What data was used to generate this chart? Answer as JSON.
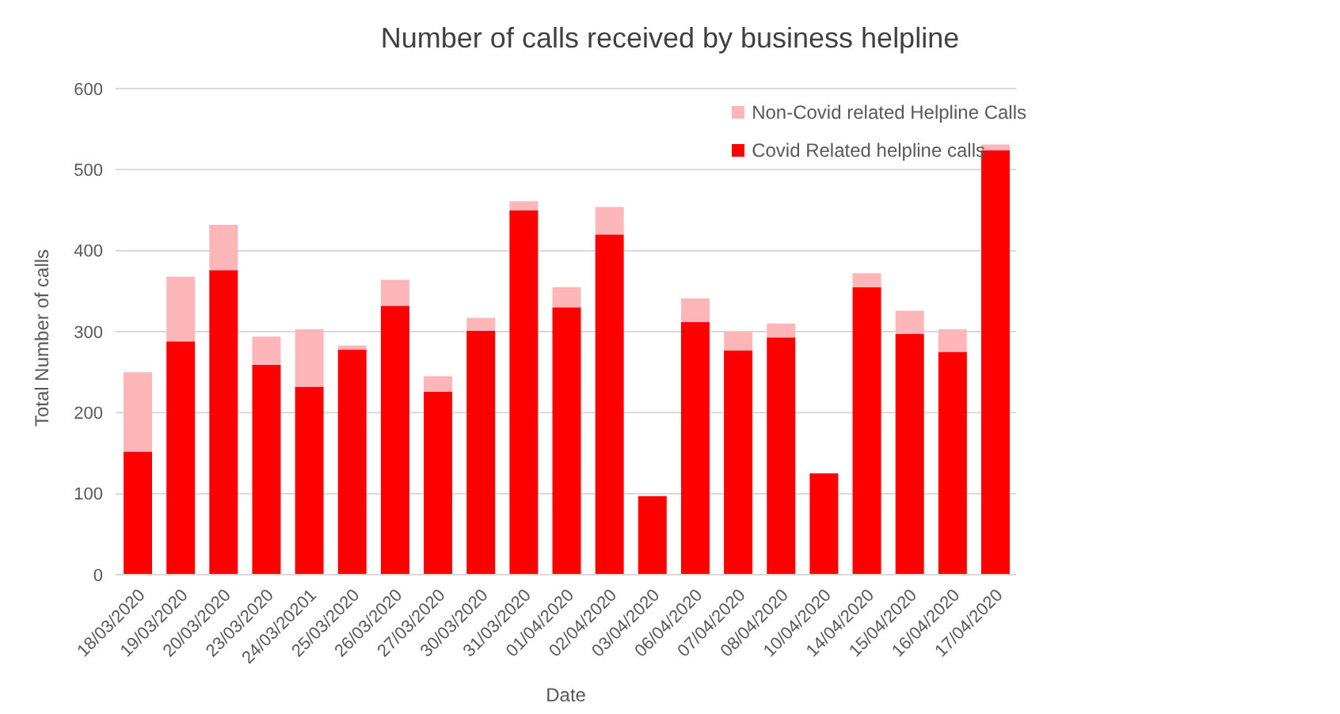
{
  "chart_data": {
    "type": "bar",
    "title": "Number of calls received by business helpline",
    "xlabel": "Date",
    "ylabel": "Total Number of calls",
    "categories": [
      "18/03/2020",
      "19/03/2020",
      "20/03/2020",
      "23/03/2020",
      "24/03/20201",
      "25/03/2020",
      "26/03/2020",
      "27/03/2020",
      "30/03/2020",
      "31/03/2020",
      "01/04/2020",
      "02/04/2020",
      "03/04/2020",
      "06/04/2020",
      "07/04/2020",
      "08/04/2020",
      "10/04/2020",
      "14/04/2020",
      "15/04/2020",
      "16/04/2020",
      "17/04/2020"
    ],
    "series": [
      {
        "name": "Covid Related helpline calls",
        "color": "#ff0000",
        "values": [
          152,
          288,
          376,
          259,
          232,
          278,
          332,
          226,
          301,
          450,
          330,
          420,
          97,
          312,
          277,
          293,
          125,
          355,
          297,
          275,
          524
        ]
      },
      {
        "name": "Non-Covid related Helpline Calls",
        "color": "#ffb6b9",
        "values": [
          98,
          80,
          56,
          35,
          71,
          5,
          32,
          19,
          16,
          11,
          25,
          34,
          0,
          29,
          23,
          17,
          0,
          17,
          29,
          28,
          7
        ]
      }
    ],
    "stacked": true,
    "ylim": [
      0,
      600
    ],
    "yticks": [
      0,
      100,
      200,
      300,
      400,
      500,
      600
    ],
    "grid": "y",
    "legend": "top right"
  }
}
